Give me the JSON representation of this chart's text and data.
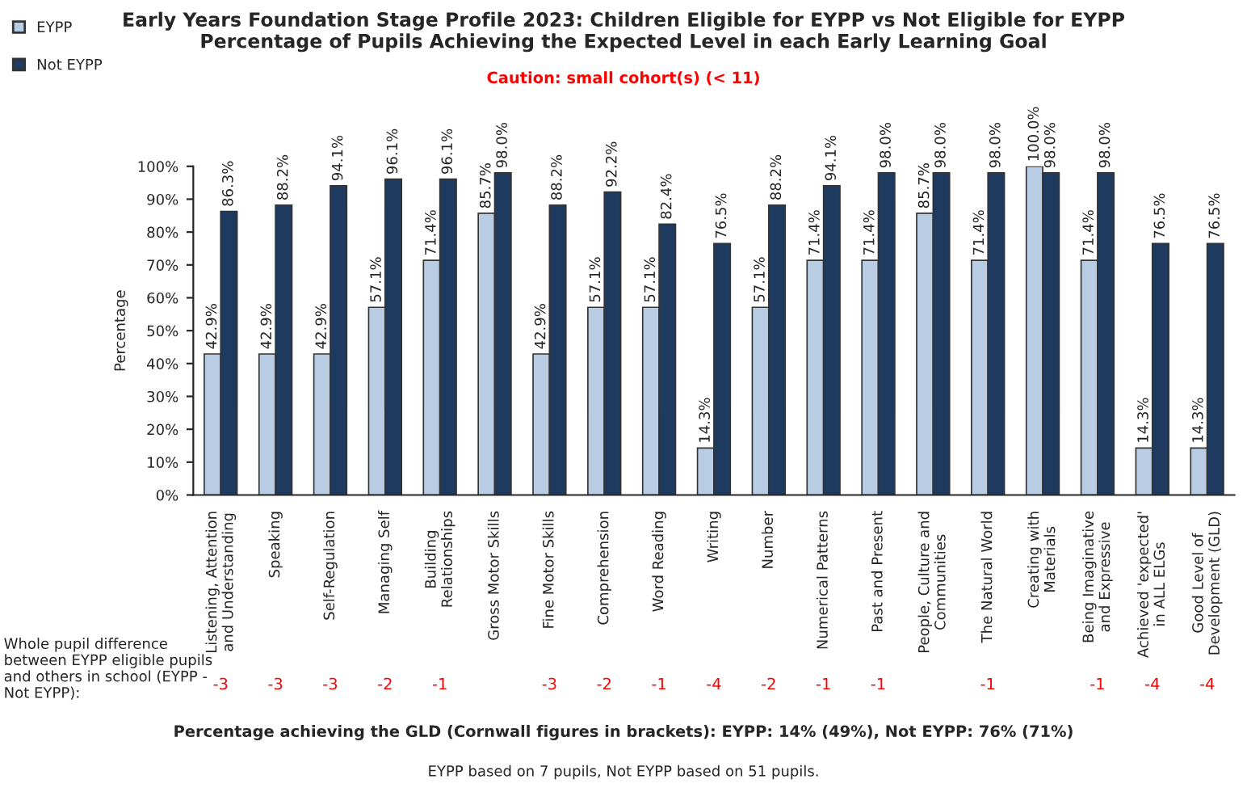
{
  "chart_data": [
    {
      "type": "bar",
      "title": "Early Years Foundation Stage Profile 2023: Children Eligible for EYPP vs Not Eligible for EYPP\nPercentage of Pupils Achieving the Expected Level in each Early Learning Goal",
      "subtitle": "Caution: small cohort(s) (< 11)",
      "ylabel": "Percentage",
      "categories": [
        "Listening, Attention\nand Understanding",
        "Speaking",
        "Self-Regulation",
        "Managing Self",
        "Building\nRelationships",
        "Gross Motor Skills",
        "Fine Motor Skills",
        "Comprehension",
        "Word Reading",
        "Writing",
        "Number",
        "Numerical Patterns",
        "Past and Present",
        "People, Culture and\nCommunities",
        "The Natural World",
        "Creating with\nMaterials",
        "Being Imaginative\nand Expressive",
        "Achieved 'expected'\nin ALL ELGs",
        "Good Level of\nDevelopment (GLD)"
      ],
      "series": [
        {
          "name": "EYPP",
          "color": "#b8cce4",
          "values": [
            42.9,
            42.9,
            42.9,
            57.1,
            71.4,
            85.7,
            42.9,
            57.1,
            57.1,
            14.3,
            57.1,
            71.4,
            71.4,
            85.7,
            71.4,
            100.0,
            71.4,
            14.3,
            14.3
          ],
          "value_labels": [
            "42.9%",
            "42.9%",
            "42.9%",
            "57.1%",
            "71.4%",
            "85.7%",
            "42.9%",
            "57.1%",
            "57.1%",
            "14.3%",
            "57.1%",
            "71.4%",
            "71.4%",
            "85.7%",
            "71.4%",
            "100.0%",
            "71.4%",
            "14.3%",
            "14.3%"
          ]
        },
        {
          "name": "Not EYPP",
          "color": "#1f3a5f",
          "values": [
            86.3,
            88.2,
            94.1,
            96.1,
            96.1,
            98.0,
            88.2,
            92.2,
            82.4,
            76.5,
            88.2,
            94.1,
            98.0,
            98.0,
            98.0,
            98.0,
            98.0,
            76.5,
            76.5
          ],
          "value_labels": [
            "86.3%",
            "88.2%",
            "94.1%",
            "96.1%",
            "96.1%",
            "98.0%",
            "88.2%",
            "92.2%",
            "82.4%",
            "76.5%",
            "88.2%",
            "94.1%",
            "98.0%",
            "98.0%",
            "98.0%",
            "98.0%",
            "98.0%",
            "76.5%",
            "76.5%"
          ]
        }
      ],
      "ylim": [
        0,
        100
      ],
      "yticks": [
        {
          "value": 0,
          "label": "0%"
        },
        {
          "value": 10,
          "label": "10%"
        },
        {
          "value": 20,
          "label": "20%"
        },
        {
          "value": 30,
          "label": "30%"
        },
        {
          "value": 40,
          "label": "40%"
        },
        {
          "value": 50,
          "label": "50%"
        },
        {
          "value": 60,
          "label": "60%"
        },
        {
          "value": 70,
          "label": "70%"
        },
        {
          "value": 80,
          "label": "80%"
        },
        {
          "value": 90,
          "label": "90%"
        },
        {
          "value": 100,
          "label": "100%"
        }
      ],
      "grid": false,
      "legend": "top left",
      "annotations": [
        "Percentage achieving the GLD (Cornwall figures in brackets): EYPP: 14% (49%), Not EYPP: 76% (71%)",
        "EYPP based on 7 pupils, Not EYPP based on 51 pupils."
      ]
    },
    {
      "type": "other",
      "ylabel": "Whole pupil difference between EYPP eligible pupils and others in school (EYPP - Not EYPP):",
      "categories": [
        null,
        null,
        null,
        null,
        null,
        null,
        null,
        null,
        null,
        null,
        null,
        null,
        null,
        null,
        null,
        null,
        null,
        null,
        null
      ],
      "values": [
        -3,
        -3,
        -3,
        -2,
        -1,
        null,
        -3,
        -2,
        -1,
        -4,
        -2,
        -1,
        -1,
        null,
        -1,
        null,
        -1,
        -4,
        -4
      ],
      "data_labels": true
    }
  ]
}
